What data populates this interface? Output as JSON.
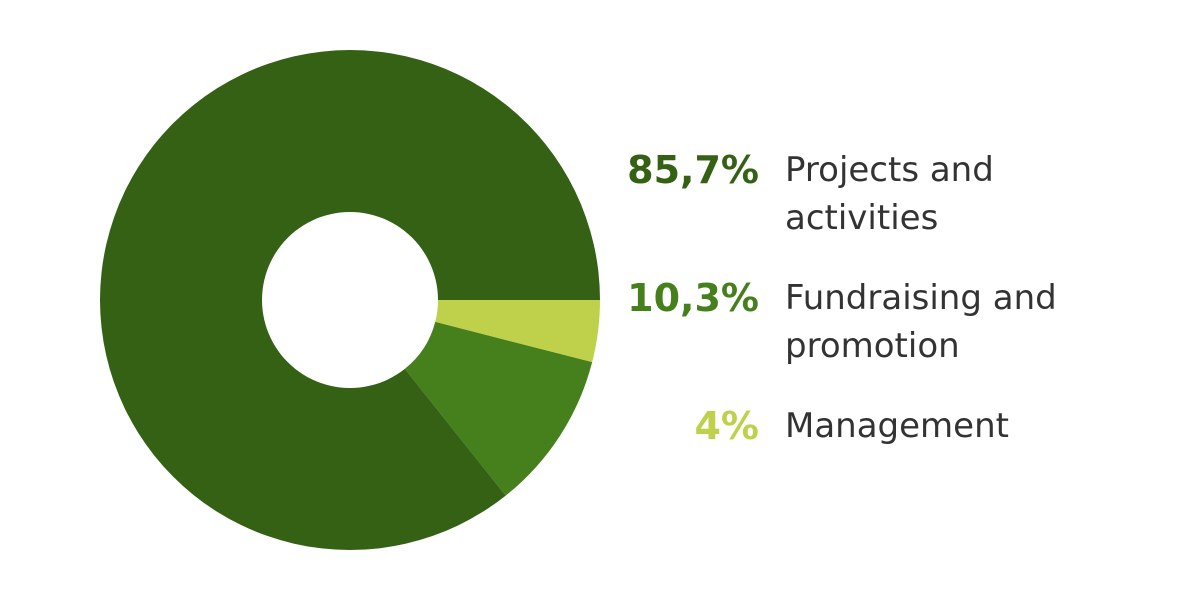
{
  "chart_data": {
    "type": "pie",
    "categories": [
      "Projects and activities",
      "Fundraising and promotion",
      "Management"
    ],
    "values": [
      85.7,
      10.3,
      4
    ],
    "value_labels": [
      "85,7%",
      "10,3%",
      "4%"
    ],
    "colors": [
      "#346114",
      "#45801c",
      "#bfd14a"
    ]
  }
}
